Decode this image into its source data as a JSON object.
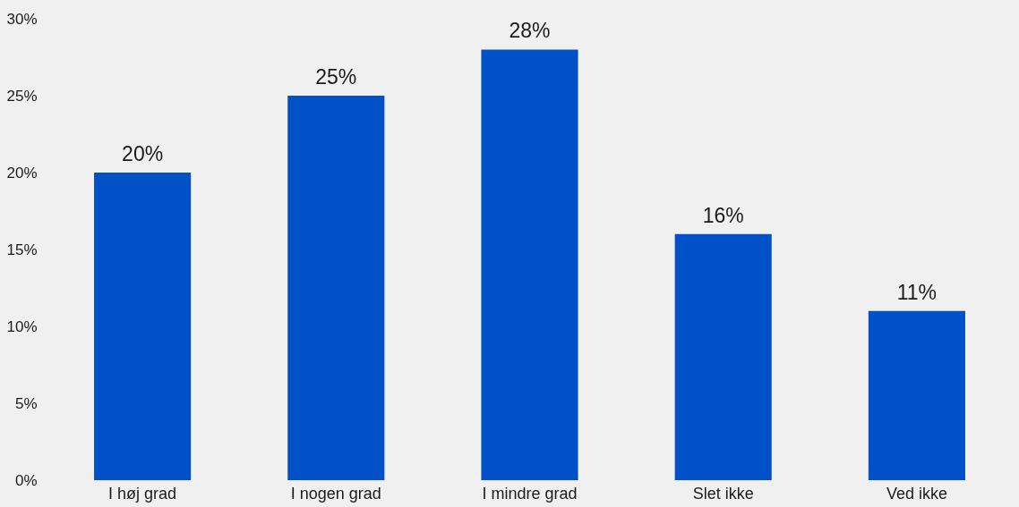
{
  "chart_data": {
    "type": "bar",
    "categories": [
      "I høj grad",
      "I nogen grad",
      "I mindre grad",
      "Slet ikke",
      "Ved ikke"
    ],
    "values": [
      20,
      25,
      28,
      16,
      11
    ],
    "color": "#0050c8",
    "value_labels": [
      "20%",
      "25%",
      "28%",
      "16%",
      "11%"
    ],
    "ylim": [
      0,
      30
    ],
    "yticks": [
      {
        "value": 0,
        "label": "0%"
      },
      {
        "value": 5,
        "label": "5%"
      },
      {
        "value": 10,
        "label": "10%"
      },
      {
        "value": 15,
        "label": "15%"
      },
      {
        "value": 20,
        "label": "20%"
      },
      {
        "value": 25,
        "label": "25%"
      },
      {
        "value": 30,
        "label": "30%"
      }
    ],
    "grid": false
  }
}
